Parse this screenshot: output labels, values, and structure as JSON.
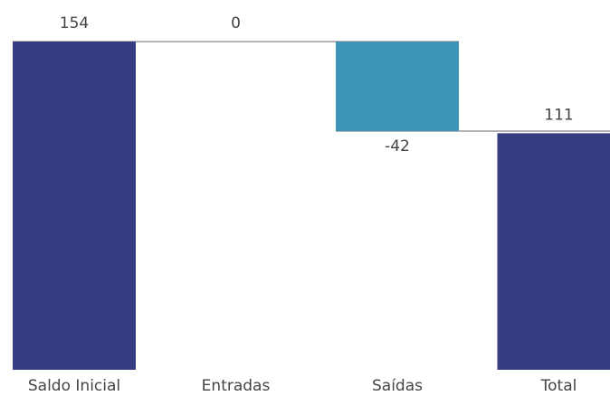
{
  "chart_data": {
    "type": "waterfall",
    "title": "",
    "xlabel": "",
    "ylabel": "",
    "grid": false,
    "legend": "none",
    "categories": [
      "Saldo Inicial",
      "Entradas",
      "Saídas",
      "Total"
    ],
    "values": [
      154,
      0,
      -42,
      111
    ],
    "value_labels": [
      "154",
      "0",
      "-42",
      "111"
    ],
    "kinds": [
      "total",
      "delta",
      "delta",
      "total"
    ],
    "colors": {
      "total": "#353D80",
      "increase": "#353D80",
      "decrease": "#3B93B5",
      "connector": "#B3B3B3",
      "text": "#444444"
    }
  }
}
